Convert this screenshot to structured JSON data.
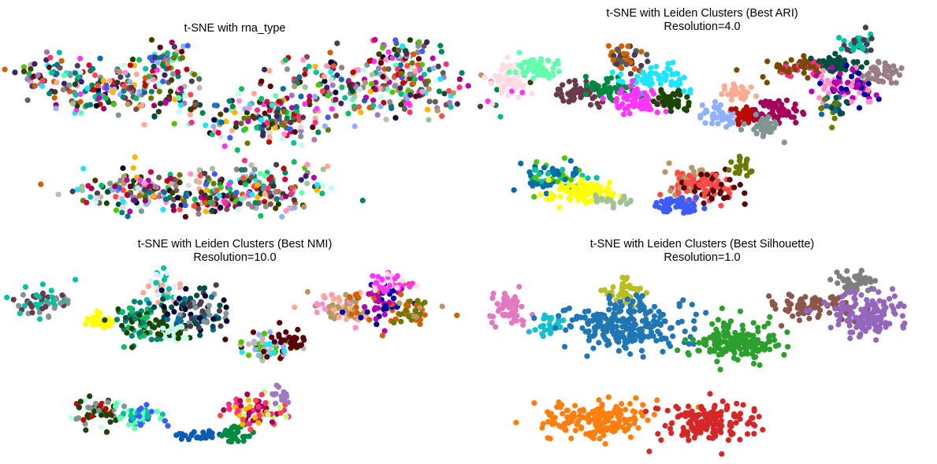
{
  "chart_data": [
    {
      "type": "scatter",
      "title": [
        "t-SNE with rna_type"
      ],
      "palette": [
        "#ff4a46",
        "#1ce6ff",
        "#ff34ff",
        "#008941",
        "#006fa6",
        "#a30059",
        "#4a3b53",
        "#ff2f80",
        "#61615a",
        "#ba0900",
        "#6b7900",
        "#00c2a0",
        "#ffaa92",
        "#ff90c9",
        "#b903aa",
        "#d16100",
        "#000035",
        "#7b4f4b",
        "#a1c299",
        "#63ffac",
        "#b79762",
        "#004d43",
        "#8fb0ff",
        "#997d87",
        "#5a0007",
        "#809693",
        "#1b4400",
        "#4fc601",
        "#3b5dff",
        "#4a3b00",
        "#ffb500",
        "#c2ffed",
        "#a079bf",
        "#cc0744",
        "#c0b9b2",
        "#0cbd66",
        "#3a2465",
        "#dddddd",
        "#00846f"
      ],
      "clusters": [
        {
          "x": -29,
          "y": 9,
          "sx": 2.5,
          "sy": 2.0,
          "n": 55
        },
        {
          "x": -18,
          "y": 5,
          "sx": 6.0,
          "sy": 2.5,
          "n": 200
        },
        {
          "x": -12,
          "y": 12,
          "sx": 1.8,
          "sy": 1.5,
          "n": 45
        },
        {
          "x": 3,
          "y": -1,
          "sx": 5.5,
          "sy": 2.5,
          "n": 160
        },
        {
          "x": 19,
          "y": 6,
          "sx": 8.0,
          "sy": 3.2,
          "n": 260
        },
        {
          "x": 23,
          "y": 13,
          "sx": 2.0,
          "sy": 1.8,
          "n": 40
        },
        {
          "x": -14,
          "y": -16,
          "sx": 6.0,
          "sy": 2.0,
          "n": 170
        },
        {
          "x": 2,
          "y": -15,
          "sx": 4.5,
          "sy": 2.5,
          "n": 150
        },
        {
          "x": -5,
          "y": -19,
          "sx": 3.0,
          "sy": 1.0,
          "n": 40
        }
      ],
      "xlim": [
        -33,
        30
      ],
      "ylim": [
        -22,
        16
      ],
      "axis": "off"
    },
    {
      "type": "scatter",
      "title": [
        "t-SNE with Leiden Clusters (Best ARI)",
        "Resolution=4.0"
      ],
      "palette": [
        "#ffdbe5",
        "#63ffac",
        "#7a4900",
        "#6a3a4c",
        "#008941",
        "#5a5a5a",
        "#d16100",
        "#1ce6ff",
        "#ff34ff",
        "#1b4400",
        "#ffaa92",
        "#8fb0ff",
        "#ba0900",
        "#809693",
        "#a30059",
        "#00c2a0",
        "#4a3b53",
        "#ff2f80",
        "#004d43",
        "#997d87",
        "#b903aa",
        "#0000a6",
        "#ff90c9",
        "#006fa6",
        "#4fc601",
        "#ffff00",
        "#b79762",
        "#ff4a46",
        "#5a0007",
        "#3b5dff",
        "#a1c299",
        "#6b7900",
        "#ddefff",
        "#000035"
      ],
      "clusters": [
        {
          "x": -30,
          "y": 8,
          "sx": 1.5,
          "sy": 1.8,
          "n": 50,
          "colors": [
            0
          ]
        },
        {
          "x": -26,
          "y": 10,
          "sx": 1.8,
          "sy": 1.2,
          "n": 55,
          "colors": [
            1
          ]
        },
        {
          "x": -13,
          "y": 12,
          "sx": 1.5,
          "sy": 1.6,
          "n": 45,
          "colors": [
            5,
            6,
            16
          ]
        },
        {
          "x": -20,
          "y": 5,
          "sx": 2.0,
          "sy": 1.5,
          "n": 50,
          "colors": [
            3
          ]
        },
        {
          "x": -15,
          "y": 6,
          "sx": 2.2,
          "sy": 1.2,
          "n": 50,
          "colors": [
            4
          ]
        },
        {
          "x": -8,
          "y": 8,
          "sx": 2.5,
          "sy": 1.3,
          "n": 60,
          "colors": [
            7
          ]
        },
        {
          "x": -11,
          "y": 3,
          "sx": 1.6,
          "sy": 1.4,
          "n": 60,
          "colors": [
            8
          ]
        },
        {
          "x": -6,
          "y": 3,
          "sx": 1.5,
          "sy": 1.2,
          "n": 40,
          "colors": [
            9
          ]
        },
        {
          "x": 1,
          "y": 0,
          "sx": 1.5,
          "sy": 1.2,
          "n": 40,
          "colors": [
            11
          ]
        },
        {
          "x": 4,
          "y": 5,
          "sx": 1.5,
          "sy": 0.8,
          "n": 30,
          "colors": [
            10
          ]
        },
        {
          "x": 5,
          "y": 0,
          "sx": 1.2,
          "sy": 1.0,
          "n": 35,
          "colors": [
            12
          ]
        },
        {
          "x": 10,
          "y": 1,
          "sx": 1.6,
          "sy": 1.2,
          "n": 50,
          "colors": [
            14
          ]
        },
        {
          "x": 8,
          "y": -2,
          "sx": 1.5,
          "sy": 1.0,
          "n": 35,
          "colors": [
            13
          ]
        },
        {
          "x": 13,
          "y": 10,
          "sx": 2.5,
          "sy": 1.0,
          "n": 60,
          "colors": [
            2,
            17
          ]
        },
        {
          "x": 19,
          "y": 11,
          "sx": 2.0,
          "sy": 1.0,
          "n": 50,
          "colors": [
            18
          ]
        },
        {
          "x": 22,
          "y": 15,
          "sx": 1.2,
          "sy": 1.0,
          "n": 40,
          "colors": [
            15,
            16
          ]
        },
        {
          "x": 25,
          "y": 9,
          "sx": 1.5,
          "sy": 1.2,
          "n": 45,
          "colors": [
            19
          ]
        },
        {
          "x": 20,
          "y": 6,
          "sx": 2.5,
          "sy": 2.0,
          "n": 80,
          "colors": [
            20,
            21,
            22
          ]
        },
        {
          "x": 18,
          "y": 2,
          "sx": 1.5,
          "sy": 1.5,
          "n": 30,
          "colors": [
            23,
            31,
            18
          ]
        },
        {
          "x": -24,
          "y": -13,
          "sx": 2.5,
          "sy": 1.5,
          "n": 70,
          "colors": [
            23,
            24,
            15
          ]
        },
        {
          "x": -19,
          "y": -16,
          "sx": 2.5,
          "sy": 1.2,
          "n": 80,
          "colors": [
            25
          ]
        },
        {
          "x": -15,
          "y": -18,
          "sx": 1.5,
          "sy": 0.6,
          "n": 20,
          "colors": [
            30
          ]
        },
        {
          "x": -3,
          "y": -14,
          "sx": 2.0,
          "sy": 1.5,
          "n": 60,
          "colors": [
            26,
            27
          ]
        },
        {
          "x": 0,
          "y": -15,
          "sx": 2.2,
          "sy": 1.5,
          "n": 70,
          "colors": [
            27,
            28
          ]
        },
        {
          "x": -5,
          "y": -19,
          "sx": 1.6,
          "sy": 0.8,
          "n": 50,
          "colors": [
            29
          ]
        },
        {
          "x": 5,
          "y": -11,
          "sx": 1.0,
          "sy": 1.0,
          "n": 20,
          "colors": [
            31
          ]
        }
      ],
      "xlim": [
        -33,
        30
      ],
      "ylim": [
        -22,
        17
      ],
      "axis": "off"
    },
    {
      "type": "scatter",
      "title": [
        "t-SNE with Leiden Clusters (Best NMI)",
        "Resolution=10.0"
      ],
      "palette": [
        "#00c2a0",
        "#6a3a4c",
        "#809693",
        "#ffff00",
        "#00846f",
        "#3b5dff",
        "#0cbd66",
        "#1b4400",
        "#006fa6",
        "#000035",
        "#4a3b53",
        "#004d43",
        "#c2ffed",
        "#ddefff",
        "#1ce6ff",
        "#4fc601",
        "#5a0007",
        "#8fb0ff",
        "#c0b9b2",
        "#ffaa92",
        "#ff90c9",
        "#ff34ff",
        "#b903aa",
        "#0000a6",
        "#d16100",
        "#b79762",
        "#6b7900",
        "#ba0900",
        "#a30059",
        "#ffdbe5",
        "#ff4a46",
        "#00c2a0",
        "#63ffac",
        "#0a5cb0",
        "#008941",
        "#ff2f80",
        "#c0ff7e",
        "#ffb500",
        "#a079bf",
        "#7a4900",
        "#61615a",
        "#cc0744"
      ],
      "clusters": [
        {
          "x": -30,
          "y": 8,
          "sx": 2.5,
          "sy": 1.8,
          "n": 55,
          "colors": [
            0,
            1,
            2
          ]
        },
        {
          "x": -22,
          "y": 4,
          "sx": 1.0,
          "sy": 1.0,
          "n": 35,
          "colors": [
            3
          ]
        },
        {
          "x": -12,
          "y": 11,
          "sx": 1.5,
          "sy": 1.5,
          "n": 40,
          "colors": [
            13,
            19,
            0
          ]
        },
        {
          "x": -16,
          "y": 4,
          "sx": 2.0,
          "sy": 2.0,
          "n": 70,
          "colors": [
            6,
            7,
            4
          ]
        },
        {
          "x": -8,
          "y": 6,
          "sx": 2.8,
          "sy": 2.2,
          "n": 100,
          "colors": [
            8,
            9,
            10,
            11,
            2
          ]
        },
        {
          "x": -11,
          "y": 2,
          "sx": 1.5,
          "sy": 1.0,
          "n": 30,
          "colors": [
            12,
            7
          ]
        },
        {
          "x": 3,
          "y": -1,
          "sx": 2.2,
          "sy": 1.5,
          "n": 60,
          "colors": [
            14,
            15,
            16,
            17,
            18
          ]
        },
        {
          "x": 7,
          "y": 0,
          "sx": 1.0,
          "sy": 1.2,
          "n": 25,
          "colors": [
            16
          ]
        },
        {
          "x": 14,
          "y": 7,
          "sx": 2.0,
          "sy": 1.5,
          "n": 60,
          "colors": [
            19,
            20,
            25
          ]
        },
        {
          "x": 20,
          "y": 8,
          "sx": 2.2,
          "sy": 2.0,
          "n": 70,
          "colors": [
            22,
            23,
            24
          ]
        },
        {
          "x": 21,
          "y": 12,
          "sx": 1.5,
          "sy": 1.0,
          "n": 40,
          "colors": [
            21,
            29
          ]
        },
        {
          "x": 25,
          "y": 6,
          "sx": 1.5,
          "sy": 1.5,
          "n": 40,
          "colors": [
            25,
            26,
            24
          ]
        },
        {
          "x": -22,
          "y": -14,
          "sx": 2.0,
          "sy": 1.5,
          "n": 60,
          "colors": [
            27,
            12,
            7,
            2
          ]
        },
        {
          "x": -15,
          "y": -15,
          "sx": 1.8,
          "sy": 1.2,
          "n": 50,
          "colors": [
            31,
            32,
            5
          ]
        },
        {
          "x": -7,
          "y": -19,
          "sx": 1.5,
          "sy": 0.5,
          "n": 25,
          "colors": [
            33
          ]
        },
        {
          "x": -2,
          "y": -18,
          "sx": 1.2,
          "sy": 1.0,
          "n": 30,
          "colors": [
            34
          ]
        },
        {
          "x": 1,
          "y": -14,
          "sx": 2.2,
          "sy": 1.5,
          "n": 70,
          "colors": [
            35,
            36,
            37,
            28,
            30
          ]
        },
        {
          "x": 5,
          "y": -11,
          "sx": 1.0,
          "sy": 1.0,
          "n": 15,
          "colors": [
            38
          ]
        }
      ],
      "xlim": [
        -33,
        30
      ],
      "ylim": [
        -22,
        15
      ],
      "axis": "off"
    },
    {
      "type": "scatter",
      "title": [
        "t-SNE with Leiden Clusters (Best Silhouette)",
        "Resolution=1.0"
      ],
      "palette": [
        "#e377c2",
        "#17becf",
        "#bcbd22",
        "#1f77b4",
        "#7f7f7f",
        "#8c564b",
        "#9467bd",
        "#2ca02c",
        "#ff7f0e",
        "#d62728"
      ],
      "clusters": [
        {
          "x": -30,
          "y": 8,
          "sx": 1.6,
          "sy": 1.8,
          "n": 50,
          "colors": [
            0
          ]
        },
        {
          "x": -24,
          "y": 5,
          "sx": 1.2,
          "sy": 1.0,
          "n": 30,
          "colors": [
            1
          ]
        },
        {
          "x": -13,
          "y": 12,
          "sx": 1.5,
          "sy": 1.5,
          "n": 45,
          "colors": [
            2
          ]
        },
        {
          "x": -13,
          "y": 5,
          "sx": 4.5,
          "sy": 2.5,
          "n": 240,
          "colors": [
            3
          ]
        },
        {
          "x": 21,
          "y": 14,
          "sx": 1.5,
          "sy": 1.2,
          "n": 40,
          "colors": [
            4
          ]
        },
        {
          "x": 15,
          "y": 9,
          "sx": 3.0,
          "sy": 1.5,
          "n": 80,
          "colors": [
            5
          ]
        },
        {
          "x": 23,
          "y": 7,
          "sx": 3.0,
          "sy": 2.5,
          "n": 150,
          "colors": [
            6
          ]
        },
        {
          "x": 4,
          "y": 1,
          "sx": 3.5,
          "sy": 2.0,
          "n": 160,
          "colors": [
            7
          ]
        },
        {
          "x": -17,
          "y": -15,
          "sx": 4.5,
          "sy": 1.8,
          "n": 170,
          "colors": [
            8
          ]
        },
        {
          "x": 0,
          "y": -15,
          "sx": 3.5,
          "sy": 2.2,
          "n": 150,
          "colors": [
            9
          ]
        }
      ],
      "xlim": [
        -33,
        30
      ],
      "ylim": [
        -22,
        17
      ],
      "axis": "off"
    }
  ]
}
